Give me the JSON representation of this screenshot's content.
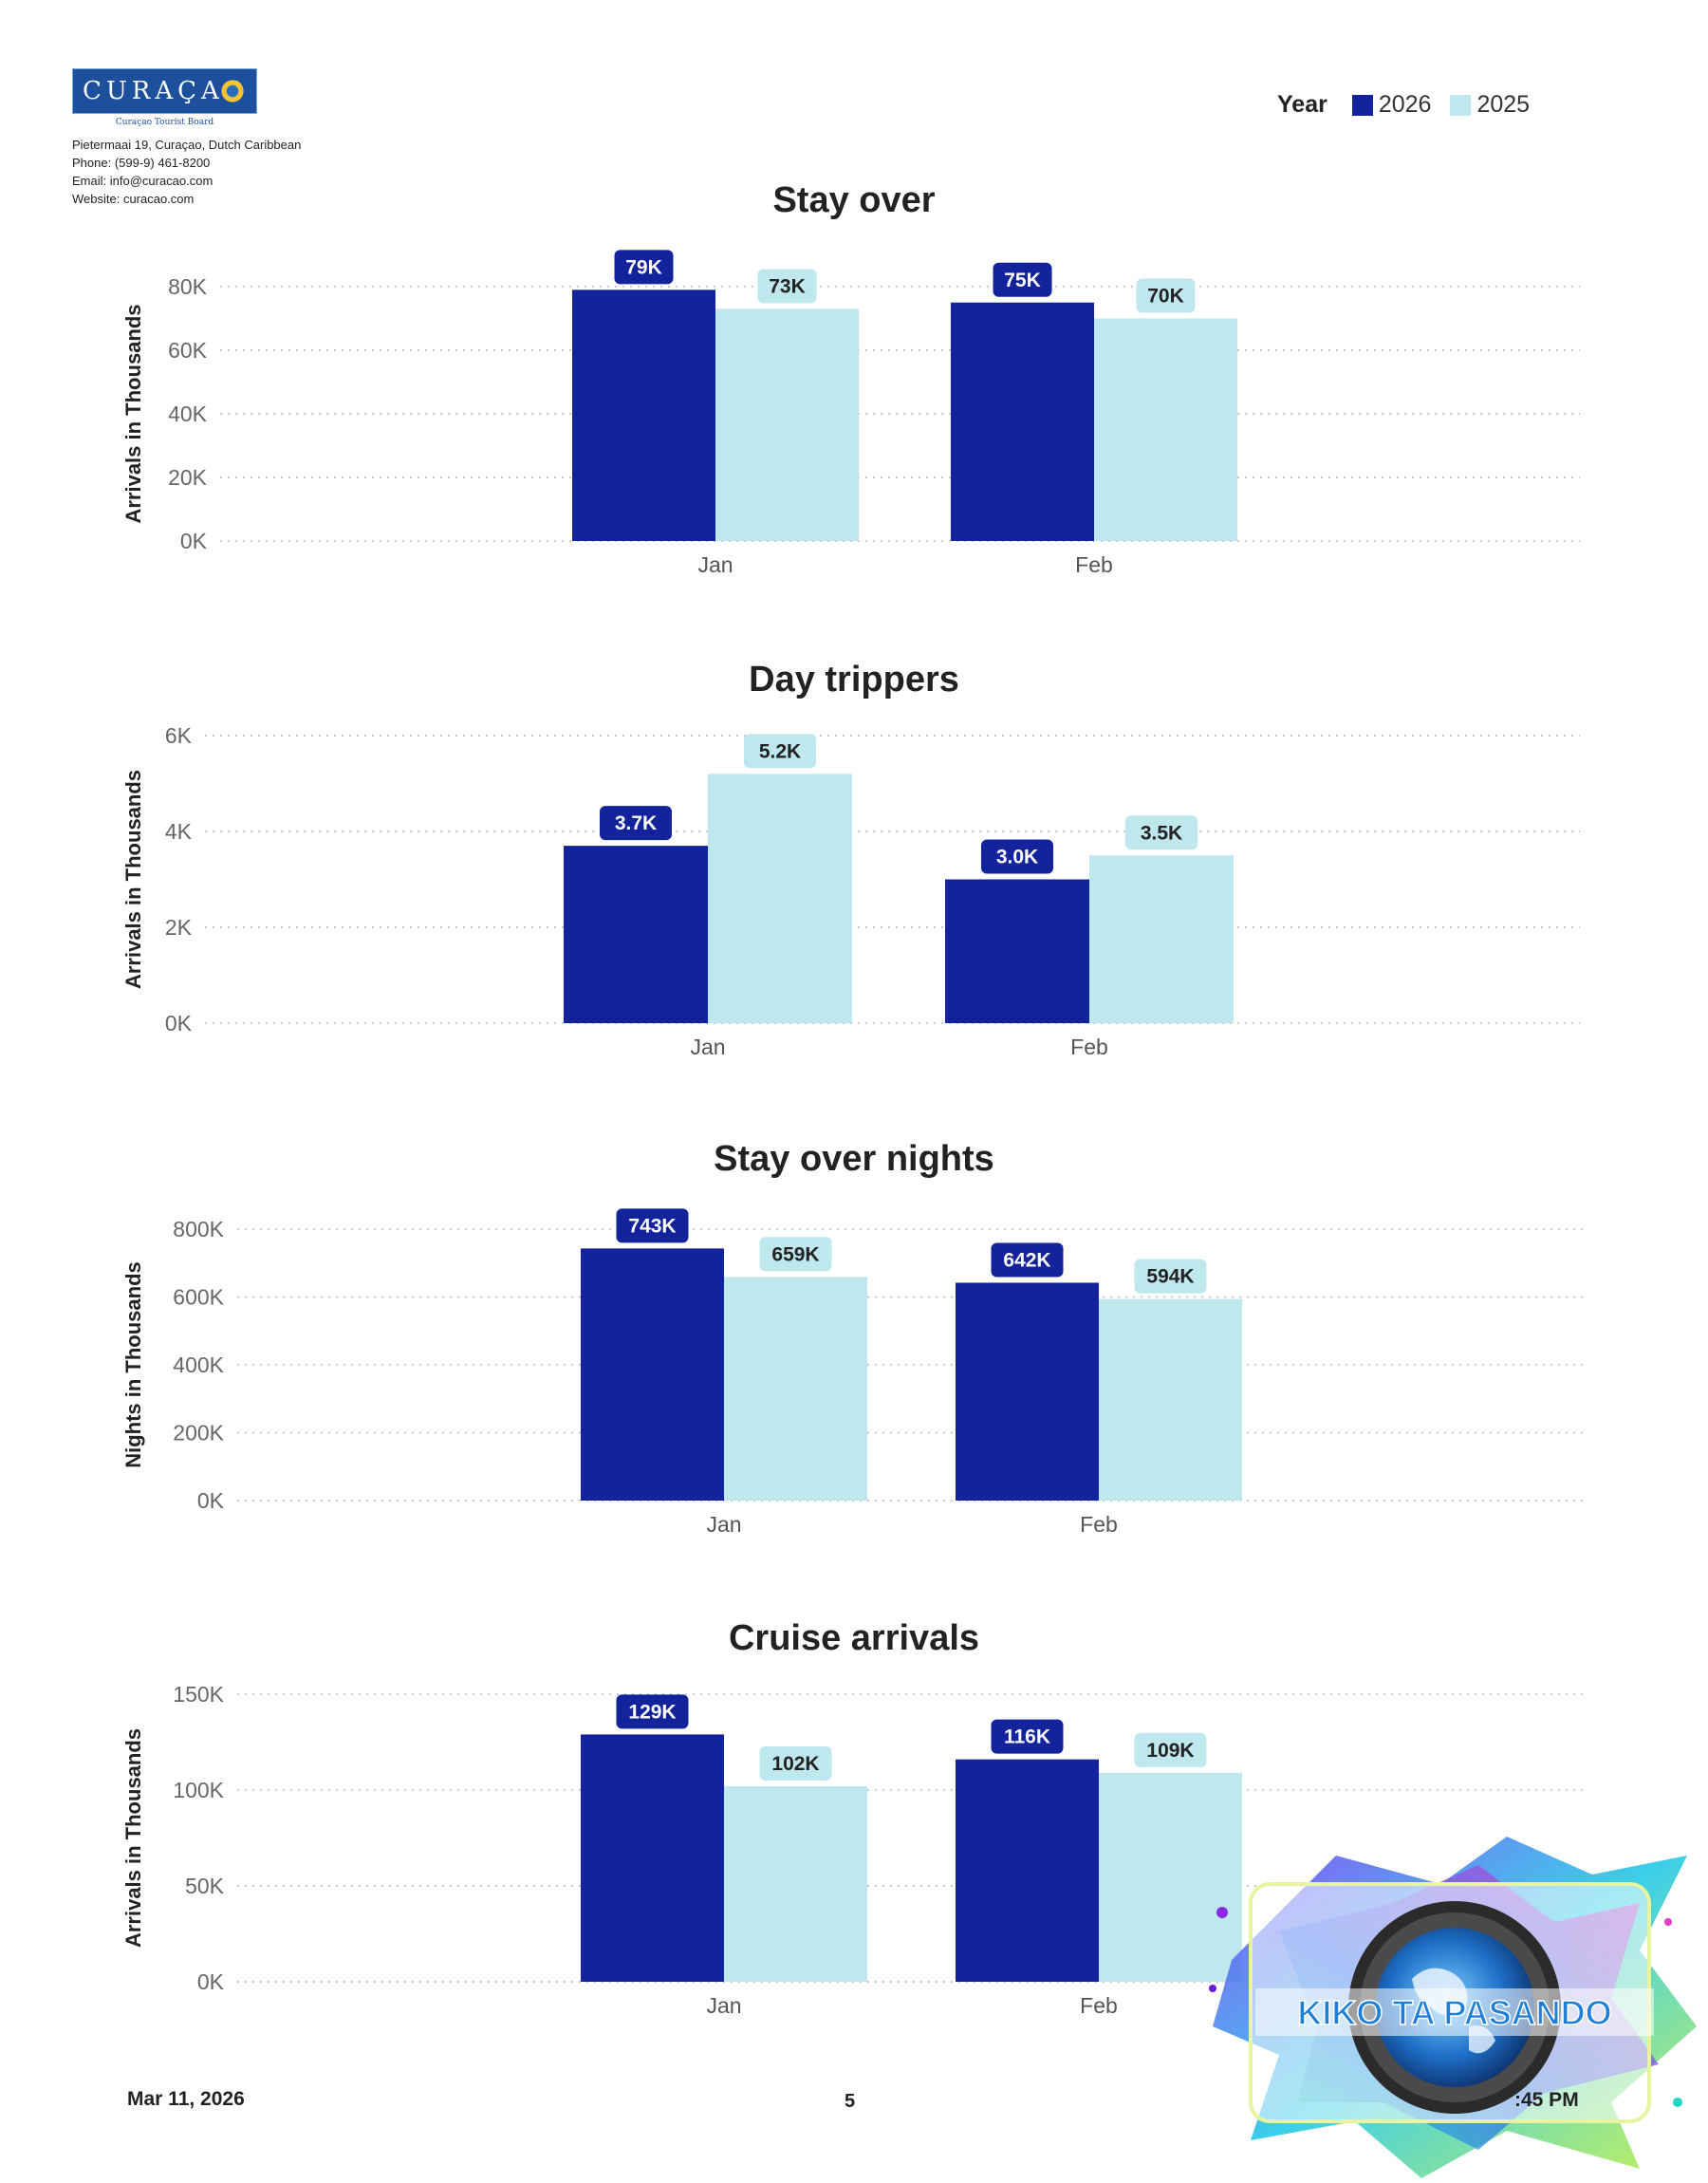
{
  "header": {
    "logo_text": "CURAÇAO",
    "logo_subtitle": "Curaçao Tourist Board",
    "address_lines": [
      "Pietermaai 19, Curaçao, Dutch Caribbean",
      "Phone: (599-9) 461-8200",
      "Email: info@curacao.com",
      "Website: curacao.com"
    ]
  },
  "legend": {
    "title": "Year",
    "items": [
      {
        "label": "2026",
        "color": "#13239b"
      },
      {
        "label": "2025",
        "color": "#bfe7ee"
      }
    ]
  },
  "chart_data": [
    {
      "type": "bar",
      "title": "Stay over",
      "ylabel": "Arrivals in Thousands",
      "categories": [
        "Jan",
        "Feb"
      ],
      "ylim": [
        0,
        80000
      ],
      "yticks": [
        0,
        20000,
        40000,
        60000,
        80000
      ],
      "ytick_labels": [
        "0K",
        "20K",
        "40K",
        "60K",
        "80K"
      ],
      "grid": true,
      "series": [
        {
          "name": "2026",
          "values": [
            79000,
            75000
          ],
          "labels": [
            "79K",
            "75K"
          ]
        },
        {
          "name": "2025",
          "values": [
            73000,
            70000
          ],
          "labels": [
            "73K",
            "70K"
          ]
        }
      ]
    },
    {
      "type": "bar",
      "title": "Day trippers",
      "ylabel": "Arrivals in Thousands",
      "categories": [
        "Jan",
        "Feb"
      ],
      "ylim": [
        0,
        6000
      ],
      "yticks": [
        0,
        2000,
        4000,
        6000
      ],
      "ytick_labels": [
        "0K",
        "2K",
        "4K",
        "6K"
      ],
      "grid": true,
      "series": [
        {
          "name": "2026",
          "values": [
            3700,
            3000
          ],
          "labels": [
            "3.7K",
            "3.0K"
          ]
        },
        {
          "name": "2025",
          "values": [
            5200,
            3500
          ],
          "labels": [
            "5.2K",
            "3.5K"
          ]
        }
      ]
    },
    {
      "type": "bar",
      "title": "Stay over nights",
      "ylabel": "Nights in Thousands",
      "categories": [
        "Jan",
        "Feb"
      ],
      "ylim": [
        0,
        800000
      ],
      "yticks": [
        0,
        200000,
        400000,
        600000,
        800000
      ],
      "ytick_labels": [
        "0K",
        "200K",
        "400K",
        "600K",
        "800K"
      ],
      "grid": true,
      "series": [
        {
          "name": "2026",
          "values": [
            743000,
            642000
          ],
          "labels": [
            "743K",
            "642K"
          ]
        },
        {
          "name": "2025",
          "values": [
            659000,
            594000
          ],
          "labels": [
            "659K",
            "594K"
          ]
        }
      ]
    },
    {
      "type": "bar",
      "title": "Cruise arrivals",
      "ylabel": "Arrivals in Thousands",
      "categories": [
        "Jan",
        "Feb"
      ],
      "ylim": [
        0,
        150000
      ],
      "yticks": [
        0,
        50000,
        100000,
        150000
      ],
      "ytick_labels": [
        "0K",
        "50K",
        "100K",
        "150K"
      ],
      "grid": true,
      "series": [
        {
          "name": "2026",
          "values": [
            129000,
            116000
          ],
          "labels": [
            "129K",
            "116K"
          ]
        },
        {
          "name": "2025",
          "values": [
            102000,
            109000
          ],
          "labels": [
            "102K",
            "109K"
          ]
        }
      ]
    }
  ],
  "footer": {
    "date": "Mar 11, 2026",
    "page": "5",
    "time_fragment": ":45 PM"
  },
  "watermark": {
    "text": "KIKO TA PASANDO"
  }
}
